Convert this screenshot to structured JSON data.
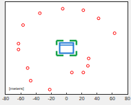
{
  "chart_data": {
    "type": "scatter",
    "annotation": "[meters]",
    "x": [
      -5,
      22,
      -35,
      -57,
      42,
      63,
      -63,
      -63,
      29,
      28,
      7,
      22,
      -51,
      -47,
      -22
    ],
    "values": [
      53,
      51,
      47,
      31,
      40,
      20,
      6,
      -2,
      -14,
      -24,
      -33,
      -33,
      -27,
      -44,
      -56
    ],
    "color": "#ff0000",
    "marker": "circle-open",
    "xlim": [
      -80,
      80
    ],
    "xticks": [
      -80,
      -60,
      -40,
      -20,
      0,
      20,
      40,
      60,
      80
    ],
    "ylim": [
      -62,
      62
    ],
    "tick_labels": "x",
    "grid": false
  }
}
